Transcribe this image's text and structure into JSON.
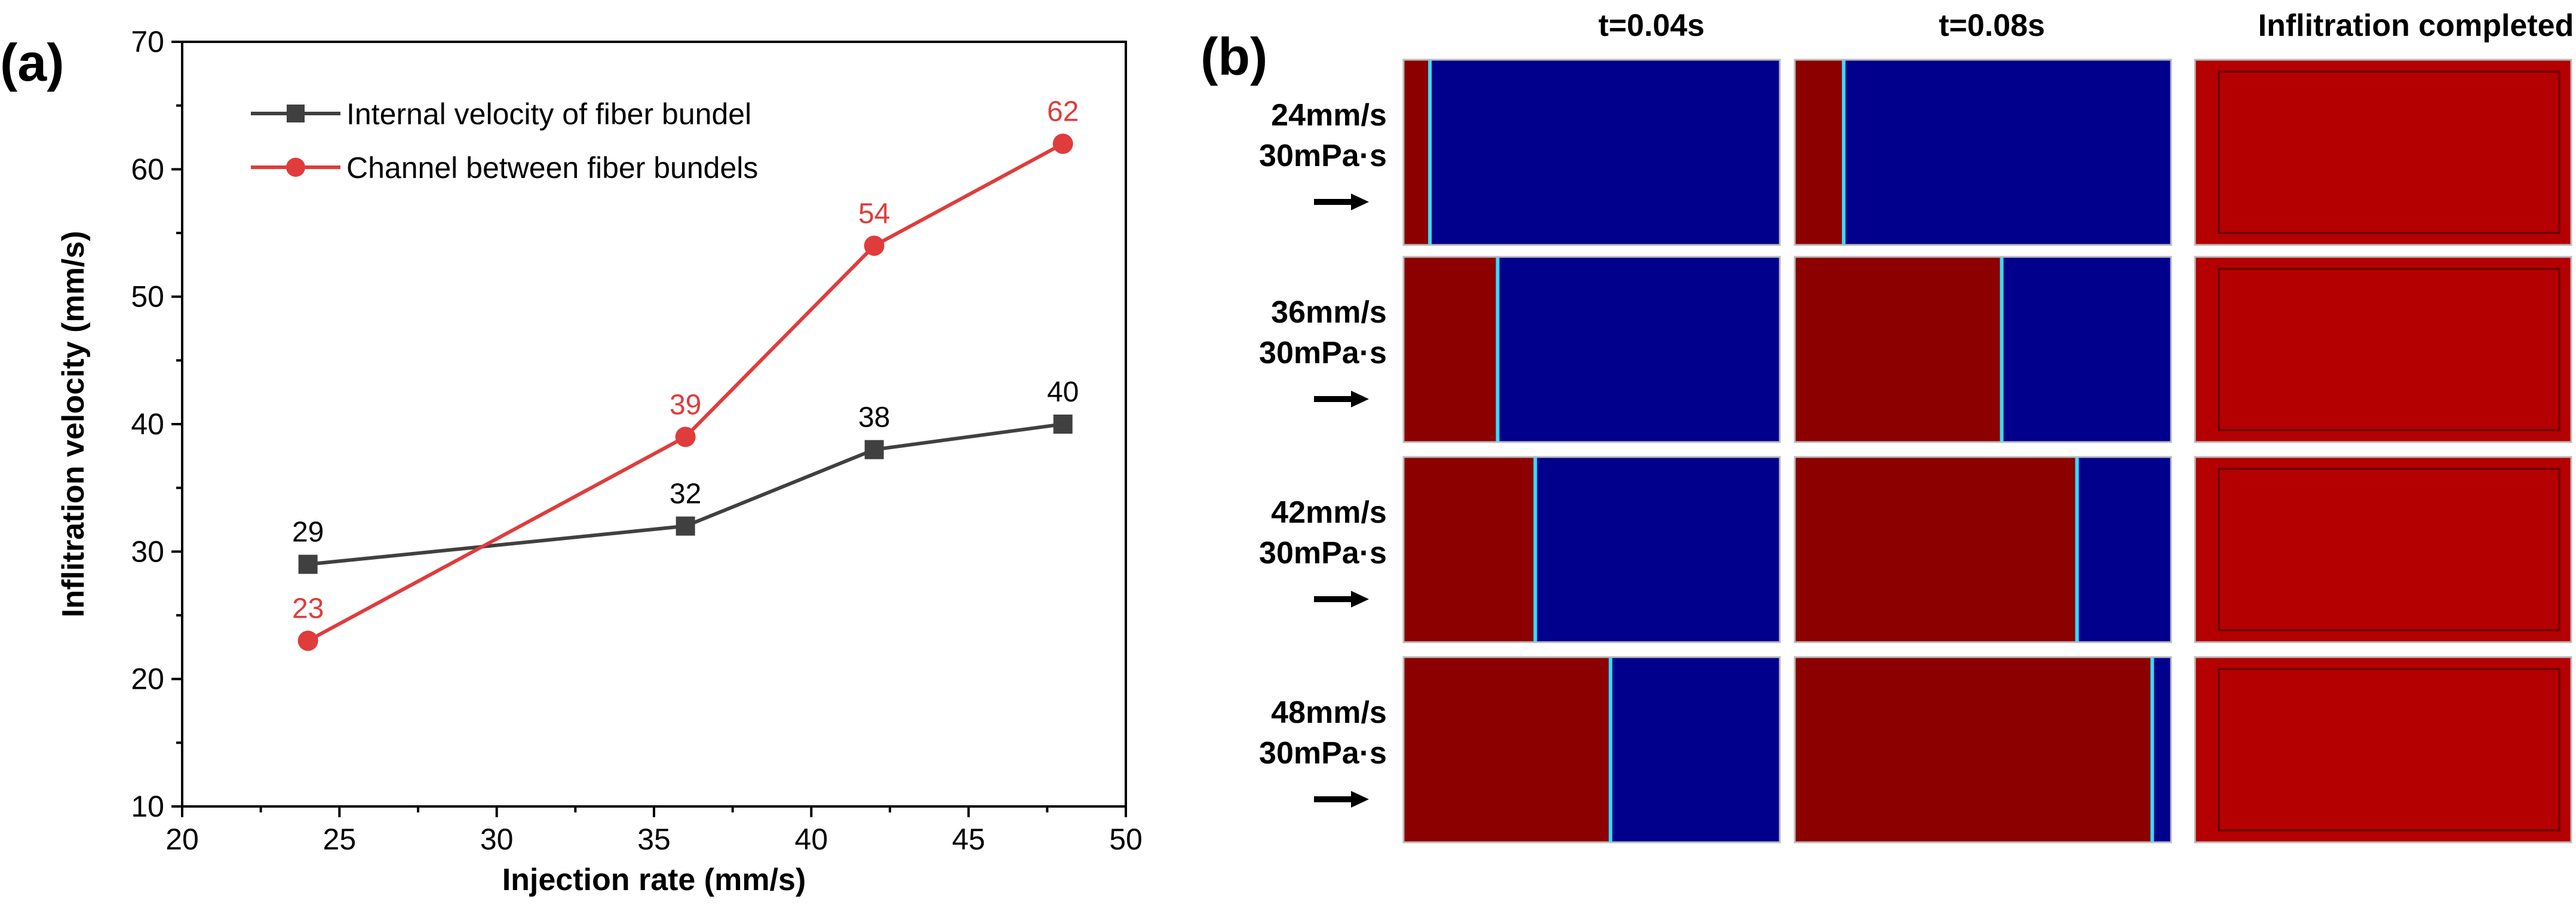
{
  "panels": {
    "a_label": "(a)",
    "b_label": "(b)"
  },
  "chart_data": {
    "type": "line",
    "title": "",
    "xlabel": "Injection rate  (mm/s)",
    "ylabel": "Inflitration velocity  (mm/s)",
    "xlim": [
      20,
      50
    ],
    "ylim": [
      10,
      70
    ],
    "xticks": [
      20,
      25,
      30,
      35,
      40,
      45,
      50
    ],
    "yticks": [
      10,
      20,
      30,
      40,
      50,
      60,
      70
    ],
    "legend_position": "top-left",
    "series": [
      {
        "name": "Internal velocity of  fiber bundel",
        "color": "#404040",
        "marker": "square",
        "x": [
          24,
          36,
          42,
          48
        ],
        "values": [
          29,
          32,
          38,
          40
        ],
        "labels": [
          "29",
          "32",
          "38",
          "40"
        ]
      },
      {
        "name": "Channel between fiber bundels",
        "color": "#e03c3c",
        "marker": "circle",
        "x": [
          24,
          36,
          42,
          48
        ],
        "values": [
          23,
          39,
          54,
          62
        ],
        "labels": [
          "23",
          "39",
          "54",
          "62"
        ]
      }
    ]
  },
  "simulation": {
    "columns": [
      "t=0.04s",
      "t=0.08s",
      "Inflitration completed"
    ],
    "rows": [
      {
        "rate": "24mm/s",
        "viscosity": "30mPa·s",
        "front_t004": 0.07,
        "front_t008": 0.13
      },
      {
        "rate": "36mm/s",
        "viscosity": "30mPa·s",
        "front_t004": 0.25,
        "front_t008": 0.55
      },
      {
        "rate": "42mm/s",
        "viscosity": "30mPa·s",
        "front_t004": 0.35,
        "front_t008": 0.75
      },
      {
        "rate": "48mm/s",
        "viscosity": "30mPa·s",
        "front_t004": 0.55,
        "front_t008": 0.95
      }
    ],
    "colors": {
      "resin": "#8c0000",
      "air": "#00008c",
      "completed": "#b40000"
    }
  }
}
